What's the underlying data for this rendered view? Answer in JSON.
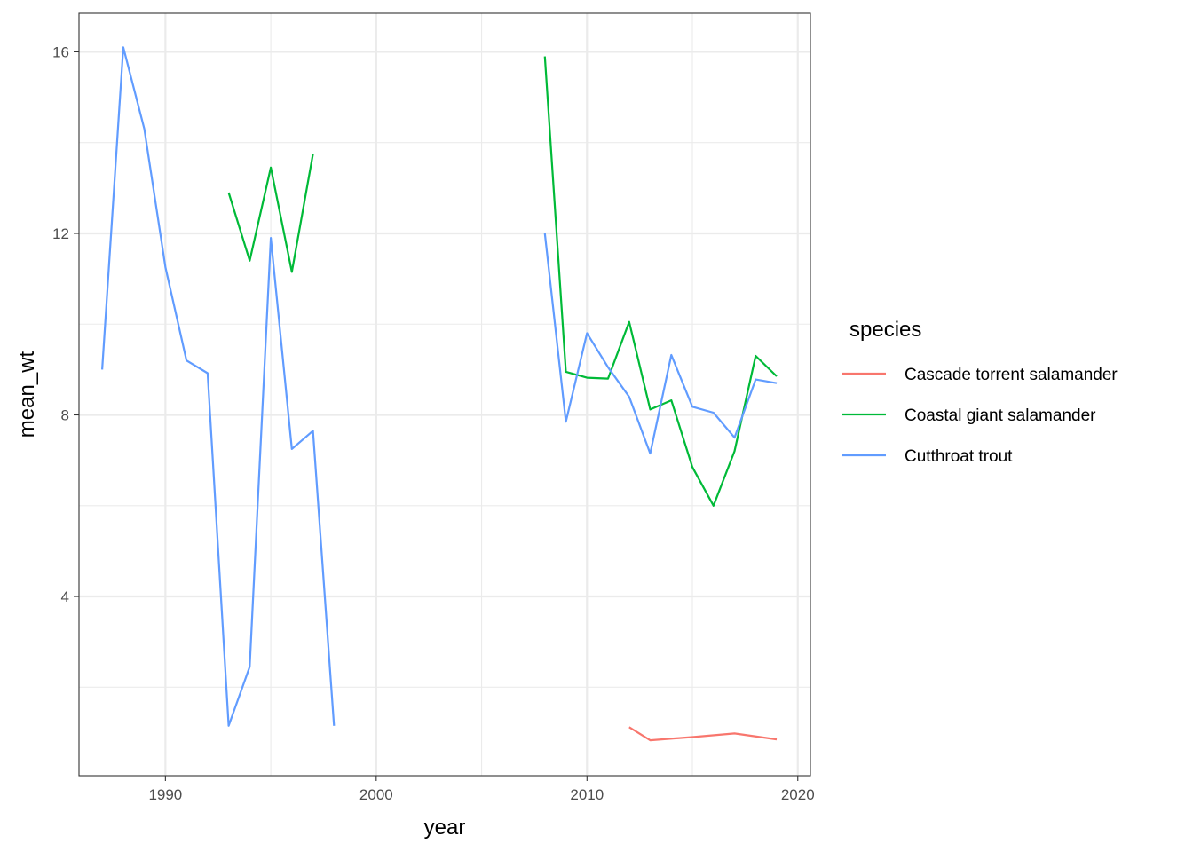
{
  "chart_data": {
    "type": "line",
    "title": "",
    "xlabel": "year",
    "ylabel": "mean_wt",
    "xlim": [
      1985.9,
      2020.6
    ],
    "ylim": [
      0.05,
      16.85
    ],
    "x_ticks": [
      1990,
      2000,
      2010,
      2020
    ],
    "y_ticks": [
      4,
      8,
      12,
      16
    ],
    "x_tick_labels": [
      "1990",
      "2000",
      "2010",
      "2020"
    ],
    "y_tick_labels": [
      "4",
      "8",
      "12",
      "16"
    ],
    "grid": true,
    "legend_position": "right",
    "legend_title": "species",
    "series": [
      {
        "name": "Cascade torrent salamander",
        "color": "#F8766D",
        "segments": [
          [
            [
              2012,
              1.12
            ],
            [
              2013,
              0.83
            ],
            [
              2015,
              0.9
            ],
            [
              2017,
              0.98
            ],
            [
              2019,
              0.85
            ]
          ]
        ]
      },
      {
        "name": "Coastal giant salamander",
        "color": "#00BA38",
        "segments": [
          [
            [
              1993,
              12.9
            ],
            [
              1994,
              11.4
            ],
            [
              1995,
              13.45
            ],
            [
              1996,
              11.15
            ],
            [
              1997,
              13.75
            ]
          ],
          [
            [
              2008,
              15.9
            ],
            [
              2009,
              8.95
            ],
            [
              2010,
              8.82
            ],
            [
              2011,
              8.8
            ],
            [
              2012,
              10.05
            ],
            [
              2013,
              8.12
            ],
            [
              2014,
              8.32
            ],
            [
              2015,
              6.85
            ],
            [
              2016,
              6.0
            ],
            [
              2017,
              7.2
            ],
            [
              2018,
              9.3
            ],
            [
              2019,
              8.85
            ]
          ]
        ]
      },
      {
        "name": "Cutthroat trout",
        "color": "#619CFF",
        "segments": [
          [
            [
              1987,
              9.0
            ],
            [
              1988,
              16.1
            ],
            [
              1989,
              14.3
            ],
            [
              1990,
              11.25
            ],
            [
              1991,
              9.2
            ],
            [
              1992,
              8.92
            ],
            [
              1993,
              1.15
            ],
            [
              1994,
              2.45
            ],
            [
              1995,
              11.9
            ],
            [
              1996,
              7.25
            ],
            [
              1997,
              7.65
            ],
            [
              1998,
              1.15
            ]
          ],
          [
            [
              2008,
              12.0
            ],
            [
              2009,
              7.85
            ],
            [
              2010,
              9.8
            ],
            [
              2011,
              9.05
            ],
            [
              2012,
              8.4
            ],
            [
              2013,
              7.15
            ],
            [
              2014,
              9.32
            ],
            [
              2015,
              8.18
            ],
            [
              2016,
              8.05
            ],
            [
              2017,
              7.5
            ],
            [
              2018,
              8.78
            ],
            [
              2019,
              8.7
            ]
          ]
        ]
      }
    ]
  }
}
